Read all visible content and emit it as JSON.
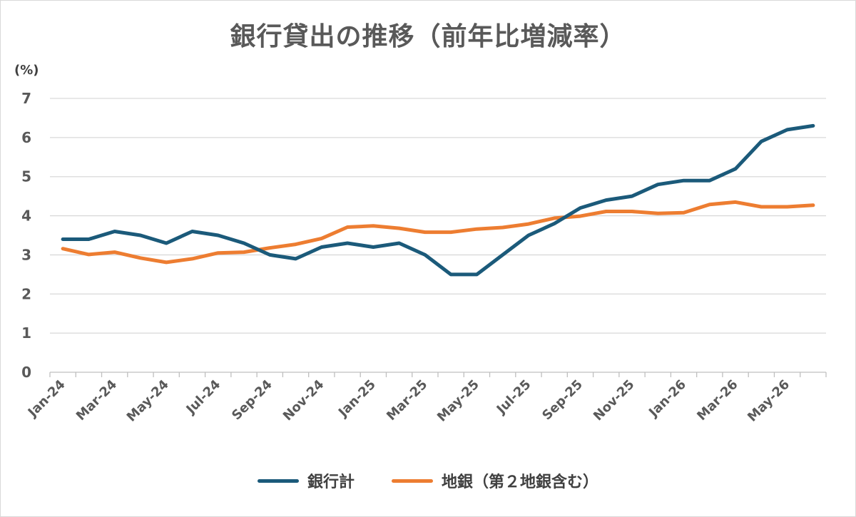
{
  "chart_data": {
    "type": "line",
    "title": "銀行貸出の推移（前年比増減率）",
    "y_unit": "(%)",
    "ylim": [
      0,
      7
    ],
    "yticks": [
      "0",
      "1",
      "2",
      "3",
      "4",
      "5",
      "6",
      "7"
    ],
    "grid": true,
    "legend_position": "bottom",
    "x": [
      "Jan-24",
      "Feb-24",
      "Mar-24",
      "Apr-24",
      "May-24",
      "Jun-24",
      "Jul-24",
      "Aug-24",
      "Sep-24",
      "Oct-24",
      "Nov-24",
      "Dec-24",
      "Jan-25",
      "Feb-25",
      "Mar-25",
      "Apr-25",
      "May-25",
      "Jun-25",
      "Jul-25",
      "Aug-25",
      "Sep-25",
      "Oct-25",
      "Nov-25",
      "Dec-25",
      "Jan-26",
      "Feb-26",
      "Mar-26",
      "Apr-26",
      "May-26",
      "Jun-26"
    ],
    "x_tick_labels": [
      "Jan-24",
      "Mar-24",
      "May-24",
      "Jul-24",
      "Sep-24",
      "Nov-24",
      "Jan-25",
      "Mar-25",
      "May-25",
      "Jul-25",
      "Sep-25",
      "Nov-25",
      "Jan-26",
      "Mar-26",
      "May-26"
    ],
    "series": [
      {
        "name": "銀行計",
        "color": "#1b5a7a",
        "values": [
          3.4,
          3.4,
          3.6,
          3.5,
          3.3,
          3.6,
          3.5,
          3.3,
          3.0,
          2.9,
          3.2,
          3.3,
          3.2,
          3.3,
          3.0,
          2.5,
          2.5,
          3.0,
          3.5,
          3.8,
          4.2,
          4.4,
          4.5,
          4.8,
          4.9,
          4.9,
          5.2,
          5.9,
          6.2,
          6.3
        ]
      },
      {
        "name": "地銀（第２地銀含む）",
        "color": "#ed7d31",
        "values": [
          3.16,
          3.01,
          3.07,
          2.92,
          2.81,
          2.9,
          3.05,
          3.07,
          3.18,
          3.27,
          3.42,
          3.71,
          3.74,
          3.68,
          3.58,
          3.58,
          3.66,
          3.7,
          3.79,
          3.94,
          3.99,
          4.11,
          4.11,
          4.06,
          4.08,
          4.29,
          4.35,
          4.23,
          4.23,
          4.27
        ]
      }
    ]
  }
}
